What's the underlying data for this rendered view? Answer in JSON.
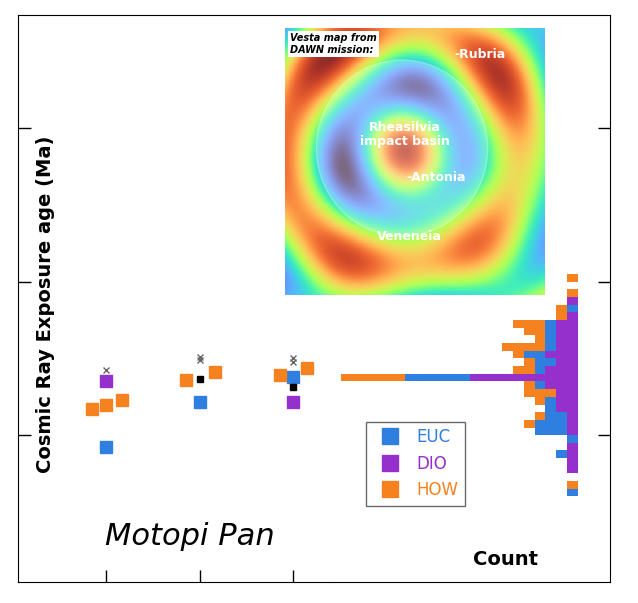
{
  "chart_data": [
    {
      "type": "scatter",
      "y_label": "Cosmic Ray Exposure age (Ma)",
      "annotations": [
        "Motopi Pan"
      ],
      "log": "y",
      "xlim": [
        0.05,
        3.4
      ],
      "xticks": [
        1,
        2,
        3
      ],
      "ylim": [
        1.1,
        5500
      ],
      "yticks": [
        10,
        100,
        1000
      ],
      "tick_labels": false,
      "legend": "lower left",
      "series": [
        {
          "name": "EUC",
          "color": "#2f7fe0",
          "marker": "square",
          "x": [
            1.0,
            2.0,
            3.0
          ],
          "values": [
            8.3,
            16.4,
            24.0
          ]
        },
        {
          "name": "DIO",
          "color": "#9630cc",
          "marker": "square",
          "x": [
            1.0,
            3.0
          ],
          "values": [
            22.5,
            16.4
          ]
        },
        {
          "name": "HOW",
          "color": "#f5821f",
          "marker": "square",
          "x": [
            0.84,
            1.0,
            1.17,
            1.85,
            2.17,
            2.86,
            3.15
          ],
          "values": [
            14.8,
            15.7,
            16.9,
            22.9,
            25.8,
            24.7,
            27.4
          ]
        },
        {
          "color": "#666666",
          "marker": "x",
          "x": [
            1.0,
            2.0,
            2.0,
            3.0,
            3.0
          ],
          "values": [
            26.6,
            31.0,
            32.3,
            31.9,
            29.9
          ]
        },
        {
          "color": "#000000",
          "marker": "square",
          "x": [
            2.0,
            3.0
          ],
          "values": [
            23.2,
            20.6
          ]
        }
      ]
    },
    {
      "type": "histogram",
      "orientation": "horizontal",
      "stacked": true,
      "x_label": "Count",
      "log": "y",
      "xlim": [
        23,
        -3
      ],
      "xticks": [],
      "ylim": [
        1.1,
        5500
      ],
      "yticks": [
        10,
        100,
        1000
      ],
      "tick_labels": false,
      "bins": [
        3.98,
        4.47,
        5.01,
        5.62,
        6.31,
        7.08,
        7.94,
        8.91,
        10.0,
        11.2,
        12.6,
        14.1,
        15.8,
        17.8,
        20.0,
        22.4,
        25.1,
        28.2,
        31.6,
        35.5,
        39.8,
        44.7,
        50.1,
        56.2,
        63.1,
        70.8,
        79.4,
        89.1,
        100,
        112
      ],
      "series": [
        {
          "name": "DIO",
          "color": "#9630cc",
          "values": [
            0,
            0,
            0,
            1,
            1,
            1,
            1,
            0,
            1,
            1,
            1,
            2,
            2,
            2,
            3,
            10,
            3,
            2,
            3,
            2,
            2,
            2,
            2,
            1,
            0,
            1,
            0,
            0,
            0
          ]
        },
        {
          "name": "EUC",
          "color": "#2f7fe0",
          "values": [
            1,
            0,
            0,
            0,
            0,
            1,
            0,
            1,
            3,
            3,
            2,
            1,
            1,
            0,
            1,
            6,
            1,
            2,
            2,
            1,
            1,
            1,
            1,
            0,
            1,
            0,
            0,
            0,
            0
          ]
        },
        {
          "name": "HOW",
          "color": "#f5821f",
          "values": [
            0,
            1,
            0,
            0,
            0,
            0,
            0,
            0,
            0,
            1,
            1,
            0,
            1,
            3,
            1,
            6,
            2,
            1,
            1,
            4,
            1,
            2,
            3,
            1,
            1,
            0,
            1,
            0,
            1
          ]
        }
      ]
    }
  ],
  "inset": {
    "title": "Vesta map from\nDAWN mission:",
    "labels": [
      "-Rubria",
      "Rheasilvia\nimpact basin",
      "-Antonia",
      "Veneneia"
    ]
  }
}
